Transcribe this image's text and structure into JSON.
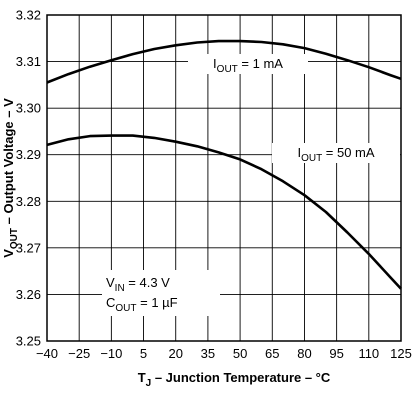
{
  "chart_data": {
    "type": "line",
    "xlabel": {
      "main": "T",
      "sub": "J",
      "rest": " – Junction Temperature – °C"
    },
    "ylabel": {
      "main": "V",
      "sub": "OUT",
      "rest": " – Output Voltage – V"
    },
    "xlim": [
      -40,
      125
    ],
    "ylim": [
      3.25,
      3.32
    ],
    "xticks": [
      -40,
      -25,
      -10,
      5,
      20,
      35,
      50,
      65,
      80,
      95,
      110,
      125
    ],
    "yticks": [
      3.25,
      3.26,
      3.27,
      3.28,
      3.29,
      3.3,
      3.31,
      3.32
    ],
    "xtick_labels": [
      "−40",
      "−25",
      "−10",
      "5",
      "20",
      "35",
      "50",
      "65",
      "80",
      "95",
      "110",
      "125"
    ],
    "ytick_labels": [
      "3.25",
      "3.26",
      "3.27",
      "3.28",
      "3.29",
      "3.30",
      "3.31",
      "3.32"
    ],
    "grid": true,
    "series": [
      {
        "name": "I_OUT = 1 mA",
        "label": {
          "main": "I",
          "sub": "OUT",
          "rest": " = 1 mA"
        },
        "x": [
          -40,
          -30,
          -20,
          -10,
          0,
          10,
          20,
          30,
          40,
          50,
          60,
          70,
          80,
          90,
          100,
          110,
          120,
          125
        ],
        "y": [
          3.3055,
          3.3073,
          3.3089,
          3.3103,
          3.3116,
          3.3127,
          3.3135,
          3.3141,
          3.3144,
          3.3144,
          3.3142,
          3.3137,
          3.3129,
          3.3117,
          3.3103,
          3.3088,
          3.3071,
          3.3063
        ]
      },
      {
        "name": "I_OUT = 50 mA",
        "label": {
          "main": "I",
          "sub": "OUT",
          "rest": " = 50 mA"
        },
        "x": [
          -40,
          -30,
          -20,
          -10,
          0,
          10,
          20,
          30,
          40,
          50,
          60,
          70,
          80,
          90,
          100,
          110,
          120,
          125
        ],
        "y": [
          3.2921,
          3.2933,
          3.294,
          3.2941,
          3.2941,
          3.2936,
          3.2928,
          3.2918,
          3.2905,
          3.289,
          3.2869,
          3.2843,
          3.2813,
          3.2777,
          3.2733,
          3.2687,
          3.2637,
          3.2612
        ]
      }
    ],
    "conditions": [
      {
        "main": "V",
        "sub": "IN",
        "rest": " = 4.3 V"
      },
      {
        "main": "C",
        "sub": "OUT",
        "rest": " = 1 µF"
      }
    ]
  }
}
